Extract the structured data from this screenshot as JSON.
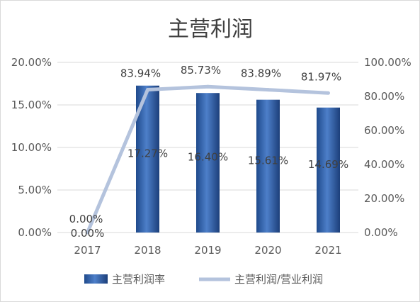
{
  "chart_data": {
    "type": "bar",
    "title": "主营利润",
    "categories": [
      "2017",
      "2018",
      "2019",
      "2020",
      "2021"
    ],
    "series": [
      {
        "name": "主营利润率",
        "type": "bar",
        "axis": "left",
        "values": [
          0.0,
          17.27,
          16.4,
          15.61,
          14.69
        ],
        "labels": [
          "0.00%",
          "17.27%",
          "16.40%",
          "15.61%",
          "14.69%"
        ],
        "color": "#2e5fa8"
      },
      {
        "name": "主营利润/营业利润",
        "type": "line",
        "axis": "right",
        "values": [
          0.0,
          83.94,
          85.73,
          83.89,
          81.97
        ],
        "labels": [
          "0.00%",
          "83.94%",
          "85.73%",
          "83.89%",
          "81.97%"
        ],
        "color": "#b4c3dd"
      }
    ],
    "y_left": {
      "range": [
        0,
        20
      ],
      "ticks": [
        "0.00%",
        "5.00%",
        "10.00%",
        "15.00%",
        "20.00%"
      ]
    },
    "y_right": {
      "range": [
        0,
        100
      ],
      "ticks": [
        "0.00%",
        "20.00%",
        "40.00%",
        "60.00%",
        "80.00%",
        "100.00%"
      ]
    },
    "grid": true,
    "legend_position": "bottom"
  }
}
